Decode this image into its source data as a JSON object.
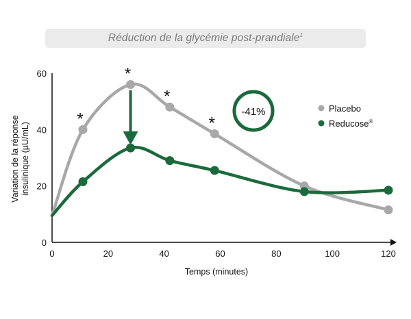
{
  "header": {
    "title": "Réduction de la glycémie post-prandiale",
    "footnote": "1"
  },
  "chart_data": {
    "type": "line",
    "title": "Réduction de la glycémie post-prandiale",
    "xlabel": "Temps (minutes)",
    "ylabel_lines": [
      "Variation de la réponse",
      "insulinique (µU/mL)"
    ],
    "xlim": [
      0,
      120
    ],
    "ylim": [
      0,
      60
    ],
    "x_ticks": [
      0,
      20,
      40,
      60,
      80,
      100,
      120
    ],
    "y_ticks": [
      0,
      20,
      40,
      60
    ],
    "grid": false,
    "legend_position": "right",
    "series": [
      {
        "name": "Placebo",
        "color": "#a8a8a8",
        "x": [
          0,
          11,
          28,
          42,
          58,
          90,
          120
        ],
        "y": [
          9.5,
          40,
          56,
          48,
          38.5,
          20,
          11.5
        ]
      },
      {
        "name": "Reducose",
        "name_suffix": "®",
        "color": "#1b6a3c",
        "x": [
          0,
          11,
          28,
          42,
          58,
          90,
          120
        ],
        "y": [
          9.5,
          21.5,
          33.5,
          29,
          25.5,
          18,
          18.5
        ]
      }
    ],
    "significance_marker": "*",
    "significance_x": [
      11,
      28,
      42,
      58
    ],
    "annotations": [
      {
        "type": "badge",
        "text": "-41%",
        "color": "#1b6a3c"
      },
      {
        "type": "arrow",
        "x": 28,
        "from_y": 54,
        "to_y": 35,
        "color": "#1b6a3c"
      }
    ]
  }
}
